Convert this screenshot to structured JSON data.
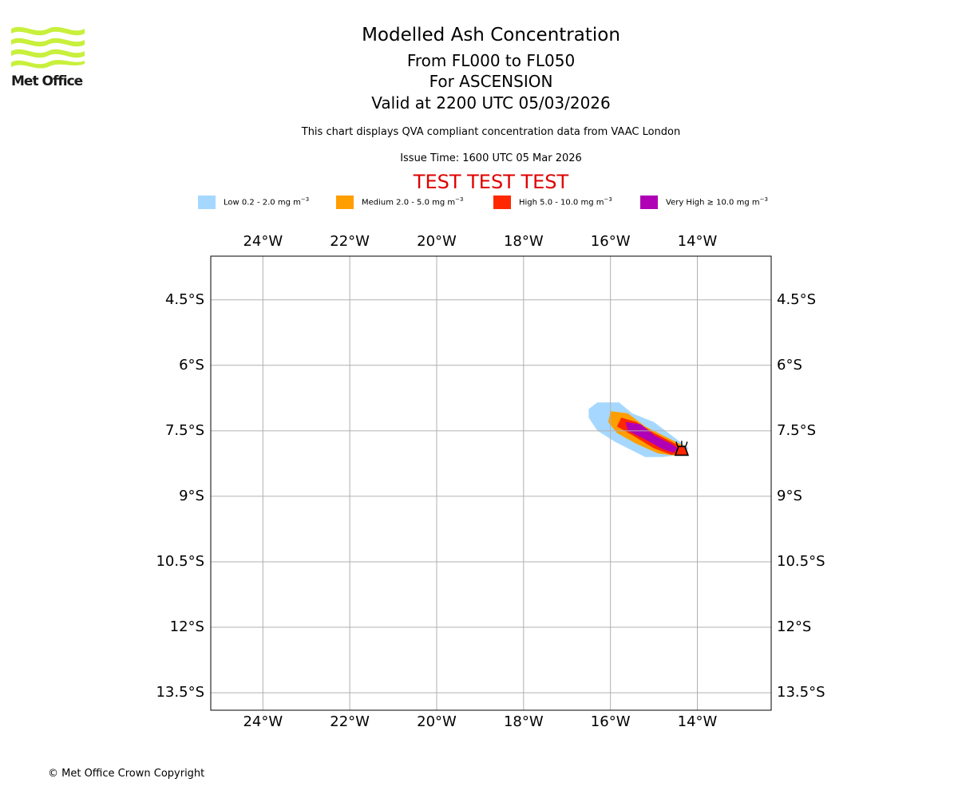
{
  "header": {
    "logo_text": "Met Office",
    "title": "Modelled Ash Concentration",
    "levels": "From FL000 to FL050",
    "location": "For ASCENSION",
    "valid": "Valid at 2200 UTC 05/03/2026",
    "subtitle": "This chart displays QVA compliant concentration data from VAAC London",
    "issue_time": "Issue Time: 1600 UTC 05 Mar 2026",
    "test_banner": "TEST TEST TEST"
  },
  "legend": [
    {
      "label": "Low 0.2 - 2.0 mg m",
      "sup": "−3",
      "color": "#a6d8ff"
    },
    {
      "label": "Medium 2.0 - 5.0 mg m",
      "sup": "−3",
      "color": "#ff9e00"
    },
    {
      "label": "High 5.0 - 10.0 mg m",
      "sup": "−3",
      "color": "#ff2800"
    },
    {
      "label": "Very High ≥ 10.0 mg m",
      "sup": "−3",
      "color": "#b000b5"
    }
  ],
  "map": {
    "lon_range": [
      -25.2,
      -12.3
    ],
    "lat_range": [
      -3.5,
      -13.9
    ],
    "lon_ticks": [
      {
        "value": -24,
        "label": "24°W"
      },
      {
        "value": -22,
        "label": "22°W"
      },
      {
        "value": -20,
        "label": "20°W"
      },
      {
        "value": -18,
        "label": "18°W"
      },
      {
        "value": -16,
        "label": "16°W"
      },
      {
        "value": -14,
        "label": "14°W"
      }
    ],
    "lat_ticks": [
      {
        "value": -4.5,
        "label": "4.5°S"
      },
      {
        "value": -6,
        "label": "6°S"
      },
      {
        "value": -7.5,
        "label": "7.5°S"
      },
      {
        "value": -9,
        "label": "9°S"
      },
      {
        "value": -10.5,
        "label": "10.5°S"
      },
      {
        "value": -12,
        "label": "12°S"
      },
      {
        "value": -13.5,
        "label": "13.5°S"
      }
    ],
    "volcano": {
      "lon": -14.36,
      "lat": -7.95
    },
    "plume_layers": [
      {
        "level": "Low",
        "color": "#a6d8ff",
        "points": [
          [
            -16.3,
            -6.85
          ],
          [
            -15.8,
            -6.85
          ],
          [
            -15.5,
            -7.1
          ],
          [
            -15.0,
            -7.3
          ],
          [
            -14.6,
            -7.6
          ],
          [
            -14.2,
            -7.9
          ],
          [
            -14.4,
            -8.05
          ],
          [
            -14.8,
            -8.1
          ],
          [
            -15.2,
            -8.1
          ],
          [
            -15.5,
            -7.95
          ],
          [
            -15.9,
            -7.75
          ],
          [
            -16.3,
            -7.5
          ],
          [
            -16.5,
            -7.2
          ],
          [
            -16.5,
            -7.0
          ]
        ]
      },
      {
        "level": "Medium",
        "color": "#ff9e00",
        "points": [
          [
            -16.0,
            -7.05
          ],
          [
            -15.6,
            -7.1
          ],
          [
            -15.2,
            -7.4
          ],
          [
            -14.7,
            -7.65
          ],
          [
            -14.3,
            -7.85
          ],
          [
            -14.25,
            -8.0
          ],
          [
            -14.5,
            -8.07
          ],
          [
            -14.9,
            -8.02
          ],
          [
            -15.4,
            -7.8
          ],
          [
            -15.85,
            -7.55
          ],
          [
            -16.05,
            -7.3
          ]
        ]
      },
      {
        "level": "High",
        "color": "#ff2800",
        "points": [
          [
            -15.75,
            -7.2
          ],
          [
            -15.4,
            -7.3
          ],
          [
            -15.0,
            -7.55
          ],
          [
            -14.6,
            -7.75
          ],
          [
            -14.3,
            -7.9
          ],
          [
            -14.35,
            -8.03
          ],
          [
            -14.6,
            -8.05
          ],
          [
            -15.0,
            -7.9
          ],
          [
            -15.5,
            -7.6
          ],
          [
            -15.85,
            -7.4
          ]
        ]
      },
      {
        "level": "Very High",
        "color": "#b000b5",
        "points": [
          [
            -15.65,
            -7.3
          ],
          [
            -15.3,
            -7.35
          ],
          [
            -15.0,
            -7.6
          ],
          [
            -14.6,
            -7.8
          ],
          [
            -14.45,
            -7.9
          ],
          [
            -14.55,
            -8.0
          ],
          [
            -14.8,
            -7.92
          ],
          [
            -15.2,
            -7.7
          ],
          [
            -15.6,
            -7.5
          ]
        ]
      }
    ]
  },
  "footer": {
    "copyright": "© Met Office Crown Copyright"
  }
}
